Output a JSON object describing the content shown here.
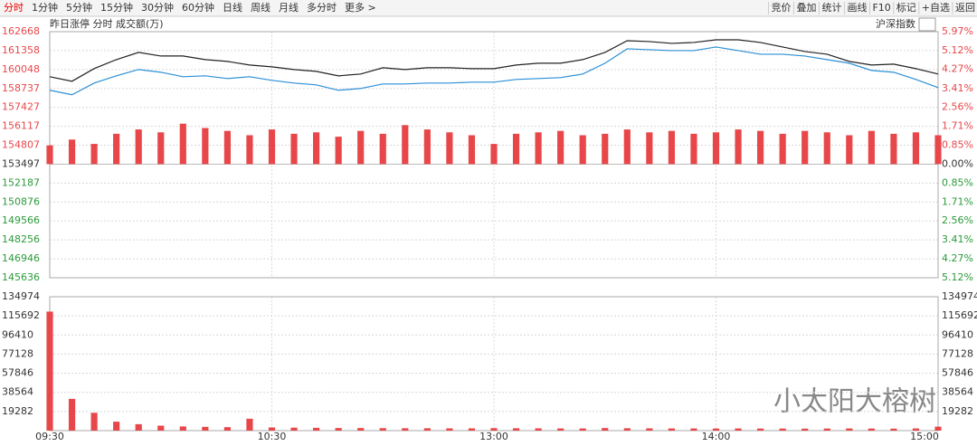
{
  "toolbar": {
    "tabs": [
      "分时",
      "1分钟",
      "5分钟",
      "15分钟",
      "30分钟",
      "60分钟",
      "日线",
      "周线",
      "月线",
      "多分时",
      "更多 >"
    ],
    "buttons": [
      "竞价",
      "叠加",
      "统计",
      "画线",
      "F10",
      "标记",
      "+自选",
      "返回"
    ]
  },
  "legend_row": {
    "left": "昨日涨停 分时 成交额(万)",
    "right": "沪深指数"
  },
  "watermark": "小太阳大榕树",
  "chart_data": [
    {
      "type": "line",
      "x": [
        0,
        6,
        12,
        18,
        24,
        30,
        36,
        42,
        48,
        54,
        60,
        66,
        72,
        78,
        84,
        90,
        96,
        102,
        108,
        114,
        120,
        126,
        132,
        138,
        144,
        150,
        156,
        162,
        168,
        174,
        180,
        186,
        192,
        198,
        204,
        210,
        216,
        222,
        228,
        234,
        240
      ],
      "xlim": [
        0,
        240
      ],
      "ylim": [
        145636,
        162668
      ],
      "yticks": [
        162668,
        161358,
        160048,
        158737,
        157427,
        156117,
        154807,
        153497,
        152187,
        150876,
        149566,
        148256,
        146946,
        145636
      ],
      "y2lim": [
        -5.12,
        5.97
      ],
      "y2ticks": [
        {
          "value": 5.97,
          "label": "5.97%"
        },
        {
          "value": 5.12,
          "label": "5.12%"
        },
        {
          "value": 4.27,
          "label": "4.27%"
        },
        {
          "value": 3.41,
          "label": "3.41%"
        },
        {
          "value": 2.56,
          "label": "2.56%"
        },
        {
          "value": 1.71,
          "label": "1.71%"
        },
        {
          "value": 0.85,
          "label": "0.85%"
        },
        {
          "value": 0,
          "label": "0.00%"
        },
        {
          "value": -0.85,
          "label": "0.85%"
        },
        {
          "value": -1.71,
          "label": "1.71%"
        },
        {
          "value": -2.56,
          "label": "2.56%"
        },
        {
          "value": -3.41,
          "label": "3.41%"
        },
        {
          "value": -4.27,
          "label": "4.27%"
        },
        {
          "value": -5.12,
          "label": "5.12%"
        }
      ],
      "series": [
        {
          "type": "line",
          "color": "#222222",
          "values": [
            159548,
            159236,
            160110,
            160734,
            161233,
            160983,
            160983,
            160734,
            160609,
            160359,
            160234,
            160047,
            159922,
            159610,
            159735,
            160172,
            160047,
            160172,
            160172,
            160110,
            160110,
            160359,
            160484,
            160484,
            160734,
            161233,
            162044,
            161982,
            161857,
            161919,
            162106,
            162106,
            161919,
            161607,
            161295,
            161108,
            160609,
            160359,
            160422,
            160110,
            159735
          ]
        },
        {
          "type": "line",
          "color": "#2a8fd6",
          "values": [
            158612,
            158300,
            159111,
            159610,
            160047,
            159860,
            159548,
            159610,
            159423,
            159548,
            159298,
            159111,
            158986,
            158612,
            158737,
            159049,
            159049,
            159111,
            159111,
            159174,
            159174,
            159361,
            159423,
            159486,
            159735,
            160484,
            161482,
            161420,
            161358,
            161358,
            161607,
            161358,
            161108,
            161108,
            160983,
            160734,
            160484,
            159985,
            159860,
            159361,
            158799
          ]
        },
        {
          "type": "bar",
          "color": "#e8474a",
          "values": [
            154800,
            155200,
            154900,
            155600,
            155900,
            155700,
            156300,
            156000,
            155800,
            155500,
            155900,
            155600,
            155700,
            155400,
            155800,
            155600,
            156200,
            155900,
            155700,
            155500,
            154900,
            155600,
            155700,
            155800,
            155500,
            155600,
            155900,
            155700,
            155800,
            155600,
            155700,
            155900,
            155800,
            155600,
            155800,
            155700,
            155500,
            155800,
            155600,
            155700,
            155500
          ]
        }
      ],
      "grid": true
    },
    {
      "type": "bar",
      "x": [
        0,
        6,
        12,
        18,
        24,
        30,
        36,
        42,
        48,
        54,
        60,
        66,
        72,
        78,
        84,
        90,
        96,
        102,
        108,
        114,
        120,
        126,
        132,
        138,
        144,
        150,
        156,
        162,
        168,
        174,
        180,
        186,
        192,
        198,
        204,
        210,
        216,
        222,
        228,
        234,
        240
      ],
      "xlim": [
        0,
        240
      ],
      "xticks": [
        {
          "value": 0,
          "label": "09:30"
        },
        {
          "value": 60,
          "label": "10:30"
        },
        {
          "value": 120,
          "label": "13:00"
        },
        {
          "value": 180,
          "label": "14:00"
        },
        {
          "value": 240,
          "label": "15:00"
        }
      ],
      "ylim": [
        0,
        134974
      ],
      "yticks": [
        134974,
        115692,
        96410,
        77128,
        57846,
        38564,
        19282
      ],
      "color": "#e8474a",
      "values": [
        120000,
        32000,
        18000,
        9000,
        6500,
        5000,
        4200,
        3800,
        3500,
        12000,
        3200,
        3000,
        2800,
        2600,
        2600,
        2500,
        2400,
        2400,
        2300,
        2300,
        2500,
        2400,
        2300,
        2200,
        2200,
        2600,
        2400,
        2300,
        2200,
        2200,
        2100,
        2200,
        2100,
        2100,
        2000,
        2100,
        2200,
        2100,
        2000,
        2200,
        4000
      ],
      "grid": true
    }
  ]
}
